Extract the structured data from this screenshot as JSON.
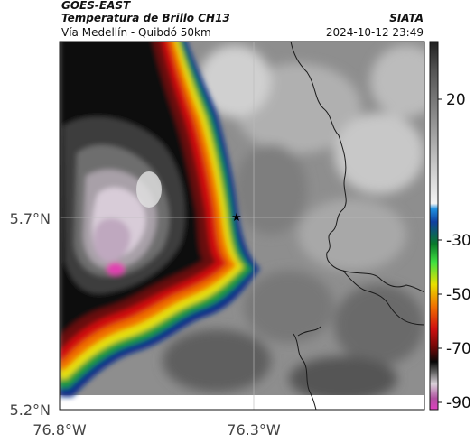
{
  "header": {
    "satellite": "GOES-EAST",
    "product": "Temperatura de Brillo CH13",
    "route": "Vía Medellín - Quibdó 50km",
    "agency": "SIATA",
    "datetime": "2024-10-12 23:49"
  },
  "axes": {
    "lat_labels": [
      "5.7°N",
      "5.2°N"
    ],
    "lon_labels": [
      "76.8°W",
      "76.3°W"
    ]
  },
  "colorbar": {
    "tick_labels": [
      "20",
      "-30",
      "-50",
      "-70",
      "-90"
    ]
  },
  "marker": {
    "symbol": "★",
    "label": "station-star"
  },
  "colors": {
    "cold_core_magenta": "#e040b0",
    "warm_background": "#9a9a9a",
    "outline": "#222222"
  }
}
